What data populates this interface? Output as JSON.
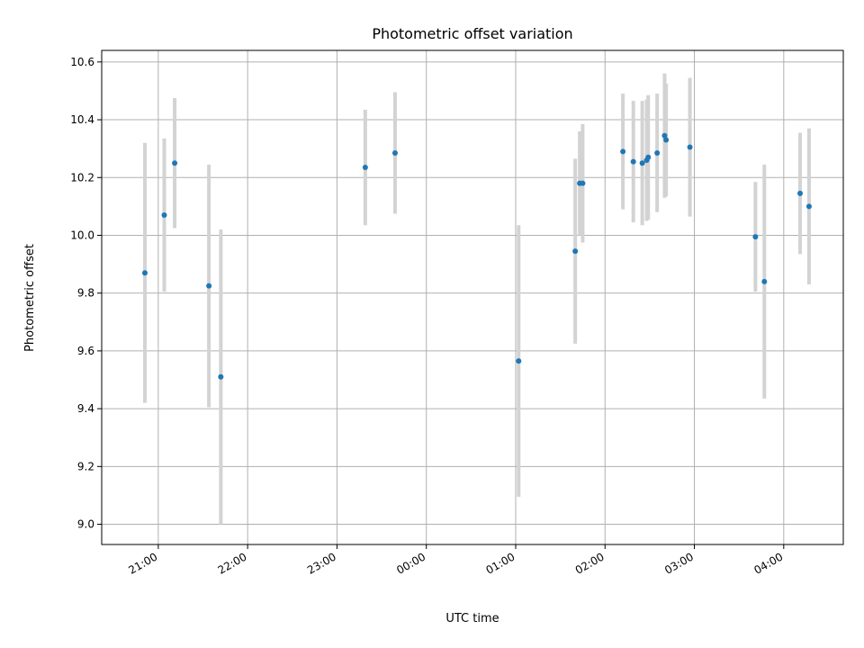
{
  "chart_data": {
    "type": "scatter",
    "title": "Photometric offset variation",
    "xlabel": "UTC time",
    "ylabel": "Photometric offset",
    "xlim": [
      "20:22",
      "04:40"
    ],
    "ylim": [
      8.93,
      10.64
    ],
    "x_ticks": [
      "21:00",
      "22:00",
      "23:00",
      "00:00",
      "01:00",
      "02:00",
      "03:00",
      "04:00"
    ],
    "y_ticks": [
      9.0,
      9.2,
      9.4,
      9.6,
      9.8,
      10.0,
      10.2,
      10.4,
      10.6
    ],
    "grid": true,
    "colors": {
      "point": "#1f77b4",
      "errorbar": "#d3d3d3",
      "grid": "#b0b0b0"
    },
    "series": [
      {
        "points": [
          {
            "x": "20:51",
            "y": 9.87,
            "err": 0.45
          },
          {
            "x": "21:04",
            "y": 10.07,
            "err": 0.265
          },
          {
            "x": "21:11",
            "y": 10.25,
            "err": 0.225
          },
          {
            "x": "21:34",
            "y": 9.825,
            "err": 0.42
          },
          {
            "x": "21:42",
            "y": 9.51,
            "err": 0.51
          },
          {
            "x": "23:19",
            "y": 10.235,
            "err": 0.2
          },
          {
            "x": "23:39",
            "y": 10.285,
            "err": 0.21
          },
          {
            "x": "01:02",
            "y": 9.565,
            "err": 0.47
          },
          {
            "x": "01:40",
            "y": 9.945,
            "err": 0.32
          },
          {
            "x": "01:43",
            "y": 10.18,
            "err": 0.18
          },
          {
            "x": "01:45",
            "y": 10.18,
            "err": 0.205
          },
          {
            "x": "02:12",
            "y": 10.29,
            "err": 0.2
          },
          {
            "x": "02:19",
            "y": 10.255,
            "err": 0.21
          },
          {
            "x": "02:25",
            "y": 10.25,
            "err": 0.215
          },
          {
            "x": "02:28",
            "y": 10.26,
            "err": 0.21
          },
          {
            "x": "02:29",
            "y": 10.27,
            "err": 0.215
          },
          {
            "x": "02:35",
            "y": 10.285,
            "err": 0.205
          },
          {
            "x": "02:40",
            "y": 10.345,
            "err": 0.215
          },
          {
            "x": "02:41",
            "y": 10.33,
            "err": 0.195
          },
          {
            "x": "02:57",
            "y": 10.305,
            "err": 0.24
          },
          {
            "x": "03:41",
            "y": 9.995,
            "err": 0.19
          },
          {
            "x": "03:47",
            "y": 9.84,
            "err": 0.405
          },
          {
            "x": "04:11",
            "y": 10.145,
            "err": 0.21
          },
          {
            "x": "04:17",
            "y": 10.1,
            "err": 0.27
          }
        ]
      }
    ]
  }
}
